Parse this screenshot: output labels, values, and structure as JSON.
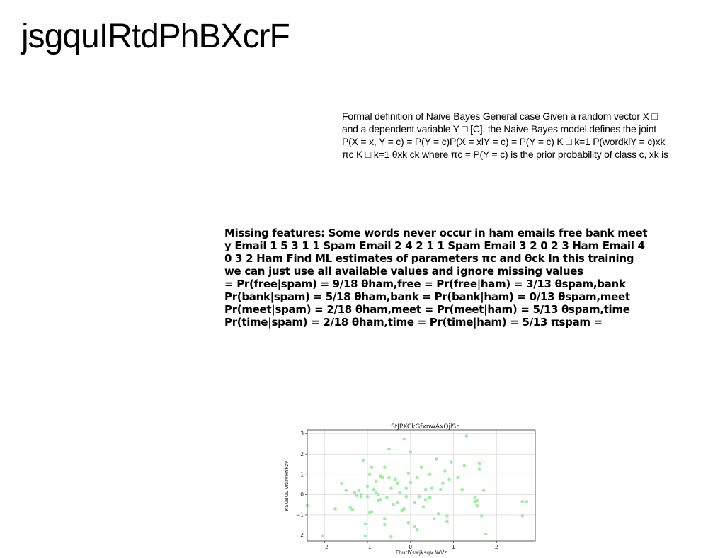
{
  "page": {
    "title": "jsgquIRtdPhBXcrF"
  },
  "nb_paragraph": {
    "lines": [
      "Formal definition of Naive Bayes General case Given a random vector X □",
      "and a dependent variable Y □ [C], the Naive Bayes model defines the joint",
      "P(X = x, Y = c) = P(Y = c)P(X = xlY = c) = P(Y = c) K □ k=1 P(wordklY = c)xk",
      "πc K □ k=1 θxk ck where πc = P(Y = c) is the prior probability of class c, xk is"
    ]
  },
  "missing_paragraph": {
    "lines": [
      "Missing features: Some words never occur in ham emails free bank meet",
      "y Email 1 5 3 1 1 Spam Email 2 4 2 1 1 Spam Email 3 2 0 2 3 Ham Email 4",
      "0 3 2 Ham Find ML estimates of parameters πc and θck In this training",
      "we can just use all available values and ignore missing values",
      "= Pr(free|spam) = 9/18 θham,free = Pr(free|ham) = 3/13 θspam,bank",
      "Pr(bank|spam) = 5/18 θham,bank = Pr(bank|ham) = 0/13 θspam,meet",
      "Pr(meet|spam) = 2/18 θham,meet = Pr(meet|ham) = 5/13 θspam,time",
      "Pr(time|spam) = 2/18 θham,time = Pr(time|ham) = 5/13 πspam ="
    ]
  },
  "chart_data": {
    "type": "scatter",
    "title": "StJPXCkGfxnwAxQjlSr",
    "xlabel": "FhudYswjksqV WVz",
    "ylabel": "KSUBUL VNTwHYkzv",
    "xlim": [
      -2.4,
      2.9
    ],
    "ylim": [
      -2.3,
      3.2
    ],
    "xticks": [
      -2,
      -1,
      0,
      1,
      2
    ],
    "yticks": [
      -2,
      -1,
      0,
      1,
      2,
      3
    ],
    "xtick_labels": [
      "−2",
      "−1",
      "0",
      "1",
      "2"
    ],
    "ytick_labels": [
      "−2",
      "−1",
      "0",
      "1",
      "2",
      "3"
    ],
    "grid": true,
    "marker_color": "#90EE90",
    "points": [
      [
        -2.4,
        -0.55
      ],
      [
        -2.05,
        -2.05
      ],
      [
        -1.75,
        -0.7
      ],
      [
        -1.6,
        0.55
      ],
      [
        -1.5,
        0.2
      ],
      [
        -1.4,
        -0.65
      ],
      [
        -1.35,
        -0.75
      ],
      [
        -1.3,
        0.1
      ],
      [
        -1.25,
        -0.05
      ],
      [
        -1.2,
        0.2
      ],
      [
        -1.15,
        -0.1
      ],
      [
        -1.1,
        1.7
      ],
      [
        -1.05,
        -1.45
      ],
      [
        -1.05,
        -2.05
      ],
      [
        -1.0,
        -0.1
      ],
      [
        -1.0,
        0.4
      ],
      [
        -0.95,
        -0.9
      ],
      [
        -0.95,
        1.0
      ],
      [
        -0.9,
        -0.85
      ],
      [
        -0.9,
        1.35
      ],
      [
        -0.85,
        0.25
      ],
      [
        -0.8,
        0.1
      ],
      [
        -0.8,
        0.65
      ],
      [
        -0.75,
        -0.3
      ],
      [
        -0.7,
        0.9
      ],
      [
        -0.7,
        -0.25
      ],
      [
        -0.65,
        0.85
      ],
      [
        -0.6,
        -1.5
      ],
      [
        -0.6,
        -1.2
      ],
      [
        -0.6,
        1.35
      ],
      [
        -0.55,
        -0.15
      ],
      [
        -0.5,
        0.85
      ],
      [
        -0.5,
        2.25
      ],
      [
        -0.45,
        -2.1
      ],
      [
        -0.45,
        0.3
      ],
      [
        -0.4,
        -0.5
      ],
      [
        -0.35,
        0.75
      ],
      [
        -0.3,
        -0.4
      ],
      [
        -0.3,
        0.55
      ],
      [
        -0.25,
        0.1
      ],
      [
        -0.2,
        -0.8
      ],
      [
        -0.15,
        -0.7
      ],
      [
        -0.1,
        -0.1
      ],
      [
        -0.15,
        2.75
      ],
      [
        -0.1,
        0.3
      ],
      [
        -0.05,
        -1.4
      ],
      [
        0.0,
        0.6
      ],
      [
        -0.05,
        1.05
      ],
      [
        0.0,
        2.1
      ],
      [
        0.1,
        -0.4
      ],
      [
        0.1,
        -1.6
      ],
      [
        0.15,
        -1.75
      ],
      [
        0.15,
        0.85
      ],
      [
        0.2,
        -0.1
      ],
      [
        0.25,
        1.35
      ],
      [
        0.3,
        -0.6
      ],
      [
        0.35,
        -0.25
      ],
      [
        0.35,
        0.25
      ],
      [
        0.45,
        -0.15
      ],
      [
        0.45,
        1.0
      ],
      [
        0.5,
        0.3
      ],
      [
        0.55,
        -1.2
      ],
      [
        0.6,
        1.75
      ],
      [
        0.65,
        -0.95
      ],
      [
        0.7,
        0.25
      ],
      [
        0.75,
        0.55
      ],
      [
        0.8,
        1.15
      ],
      [
        0.85,
        -1.05
      ],
      [
        0.85,
        -1.35
      ],
      [
        0.9,
        0.75
      ],
      [
        0.95,
        1.6
      ],
      [
        1.1,
        0.85
      ],
      [
        1.2,
        0.25
      ],
      [
        1.25,
        1.45
      ],
      [
        1.3,
        2.9
      ],
      [
        1.5,
        -0.15
      ],
      [
        1.5,
        -0.35
      ],
      [
        1.55,
        -0.55
      ],
      [
        1.6,
        1.55
      ],
      [
        1.6,
        1.25
      ],
      [
        1.65,
        -1.05
      ],
      [
        1.7,
        0.2
      ],
      [
        1.75,
        -1.95
      ],
      [
        2.6,
        -0.35
      ],
      [
        2.6,
        -1.05
      ],
      [
        2.7,
        -0.35
      ],
      [
        -1.15,
        0.0
      ],
      [
        -0.75,
        0.0
      ],
      [
        1.55,
        -0.3
      ]
    ]
  }
}
